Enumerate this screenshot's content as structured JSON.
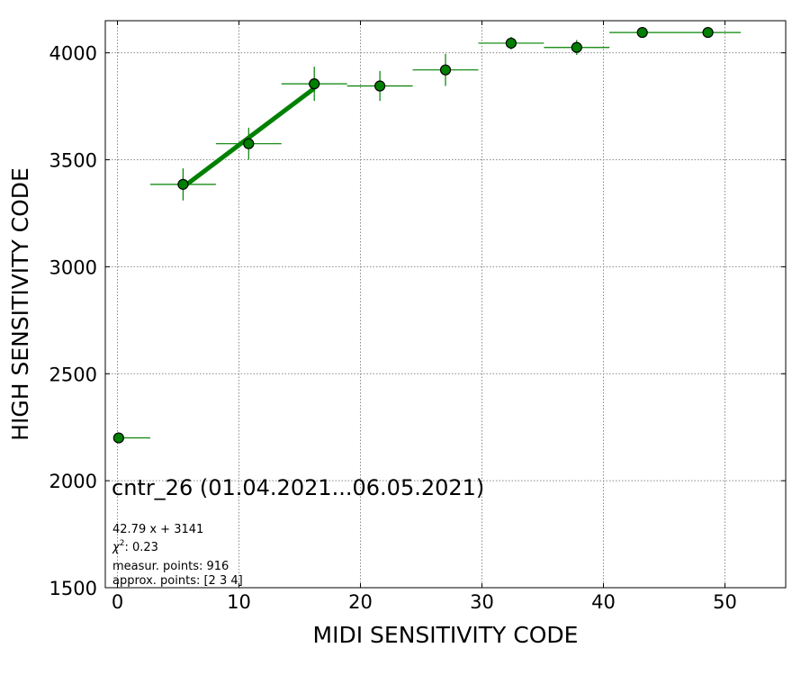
{
  "chart_data": {
    "type": "scatter",
    "xlabel": "MIDI SENSITIVITY CODE",
    "ylabel": "HIGH SENSITIVITY CODE",
    "xlim": [
      -1,
      55
    ],
    "ylim": [
      1500,
      4150
    ],
    "xticks": [
      0,
      10,
      20,
      30,
      40,
      50
    ],
    "yticks": [
      1500,
      2000,
      2500,
      3000,
      3500,
      4000
    ],
    "grid": true,
    "color": "#008000",
    "points": [
      {
        "x": 0.1,
        "y": 2200,
        "xmin": 0.1,
        "xmax": 2.7,
        "yerr": 0
      },
      {
        "x": 5.4,
        "y": 3385,
        "xmin": 2.7,
        "xmax": 8.1,
        "yerr": 75
      },
      {
        "x": 10.8,
        "y": 3575,
        "xmin": 8.1,
        "xmax": 13.5,
        "yerr": 75
      },
      {
        "x": 16.2,
        "y": 3855,
        "xmin": 13.5,
        "xmax": 18.9,
        "yerr": 80
      },
      {
        "x": 21.6,
        "y": 3845,
        "xmin": 18.9,
        "xmax": 24.3,
        "yerr": 70
      },
      {
        "x": 27.0,
        "y": 3920,
        "xmin": 24.3,
        "xmax": 29.7,
        "yerr": 75
      },
      {
        "x": 32.4,
        "y": 4045,
        "xmin": 29.7,
        "xmax": 35.1,
        "yerr": 30
      },
      {
        "x": 37.8,
        "y": 4025,
        "xmin": 35.1,
        "xmax": 40.5,
        "yerr": 35
      },
      {
        "x": 43.2,
        "y": 4095,
        "xmin": 40.5,
        "xmax": 51.3,
        "yerr": 0
      },
      {
        "x": 48.6,
        "y": 4095,
        "xmin": 40.5,
        "xmax": 51.3,
        "yerr": 0
      }
    ],
    "fit": {
      "slope": 42.79,
      "intercept": 3141,
      "x_range": [
        5.4,
        16.2
      ]
    },
    "annotations": {
      "title": "cntr_26 (01.04.2021...06.05.2021)",
      "equation": "42.79 x + 3141",
      "chi2_value": ": 0.23",
      "measur_points": "measur. points: 916",
      "approx_points": "approx. points: [2 3 4]"
    }
  }
}
